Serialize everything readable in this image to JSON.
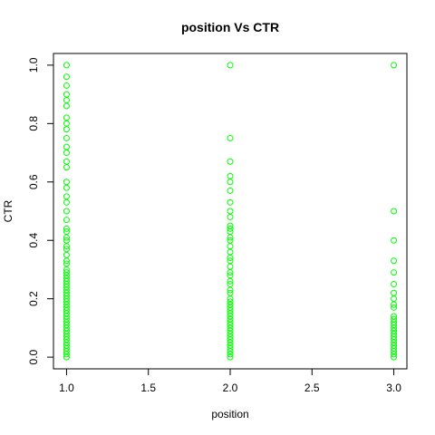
{
  "chart_data": {
    "type": "scatter",
    "title": "position Vs CTR",
    "xlabel": "position",
    "ylabel": "CTR",
    "xlim": [
      0.92,
      3.08
    ],
    "ylim": [
      -0.04,
      1.04
    ],
    "x_ticks": [
      1.0,
      1.5,
      2.0,
      2.5,
      3.0
    ],
    "x_tick_labels": [
      "1.0",
      "1.5",
      "2.0",
      "2.5",
      "3.0"
    ],
    "y_ticks": [
      0.0,
      0.2,
      0.4,
      0.6,
      0.8,
      1.0
    ],
    "y_tick_labels": [
      "0.0",
      "0.2",
      "0.4",
      "0.6",
      "0.8",
      "1.0"
    ],
    "grid": false,
    "marker_color": "#00ff00",
    "marker": "open-circle",
    "series": [
      {
        "x": 1,
        "y": [
          1.0,
          0.96,
          0.93,
          0.9,
          0.88,
          0.86,
          0.82,
          0.8,
          0.78,
          0.75,
          0.72,
          0.7,
          0.67,
          0.65,
          0.6,
          0.58,
          0.55,
          0.53,
          0.5,
          0.47,
          0.44,
          0.43,
          0.41,
          0.4,
          0.38,
          0.37,
          0.35,
          0.33,
          0.32,
          0.3,
          0.29,
          0.28,
          0.27,
          0.26,
          0.25,
          0.24,
          0.23,
          0.22,
          0.21,
          0.2,
          0.19,
          0.18,
          0.17,
          0.16,
          0.15,
          0.14,
          0.13,
          0.12,
          0.11,
          0.1,
          0.09,
          0.08,
          0.07,
          0.06,
          0.05,
          0.04,
          0.03,
          0.02,
          0.01,
          0.0
        ]
      },
      {
        "x": 2,
        "y": [
          1.0,
          0.75,
          0.67,
          0.62,
          0.6,
          0.57,
          0.53,
          0.5,
          0.48,
          0.45,
          0.44,
          0.43,
          0.41,
          0.4,
          0.38,
          0.36,
          0.34,
          0.33,
          0.31,
          0.29,
          0.28,
          0.26,
          0.25,
          0.23,
          0.22,
          0.2,
          0.19,
          0.18,
          0.17,
          0.16,
          0.15,
          0.14,
          0.13,
          0.12,
          0.11,
          0.1,
          0.09,
          0.08,
          0.07,
          0.06,
          0.05,
          0.04,
          0.03,
          0.02,
          0.01,
          0.0
        ]
      },
      {
        "x": 3,
        "y": [
          1.0,
          0.5,
          0.4,
          0.33,
          0.29,
          0.25,
          0.22,
          0.2,
          0.18,
          0.17,
          0.14,
          0.13,
          0.12,
          0.11,
          0.1,
          0.09,
          0.08,
          0.07,
          0.06,
          0.05,
          0.04,
          0.03,
          0.02,
          0.01,
          0.0
        ]
      }
    ]
  }
}
